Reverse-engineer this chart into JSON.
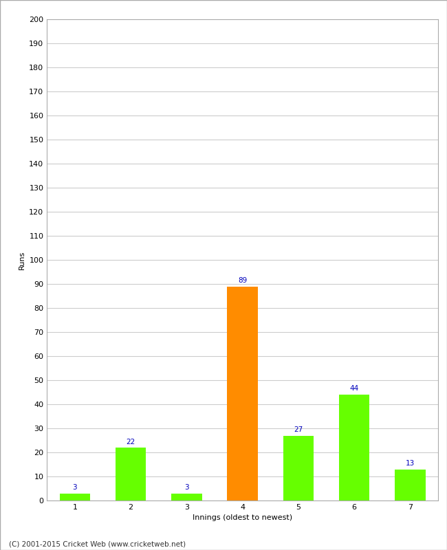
{
  "categories": [
    1,
    2,
    3,
    4,
    5,
    6,
    7
  ],
  "values": [
    3,
    22,
    3,
    89,
    27,
    44,
    13
  ],
  "bar_colors": [
    "#66ff00",
    "#66ff00",
    "#66ff00",
    "#ff8c00",
    "#66ff00",
    "#66ff00",
    "#66ff00"
  ],
  "xlabel": "Innings (oldest to newest)",
  "ylabel": "Runs",
  "ylim": [
    0,
    200
  ],
  "yticks": [
    0,
    10,
    20,
    30,
    40,
    50,
    60,
    70,
    80,
    90,
    100,
    110,
    120,
    130,
    140,
    150,
    160,
    170,
    180,
    190,
    200
  ],
  "label_color": "#0000bb",
  "label_fontsize": 7.5,
  "axis_label_fontsize": 8,
  "tick_fontsize": 8,
  "footer": "(C) 2001-2015 Cricket Web (www.cricketweb.net)",
  "background_color": "#ffffff",
  "grid_color": "#cccccc",
  "border_color": "#aaaaaa"
}
